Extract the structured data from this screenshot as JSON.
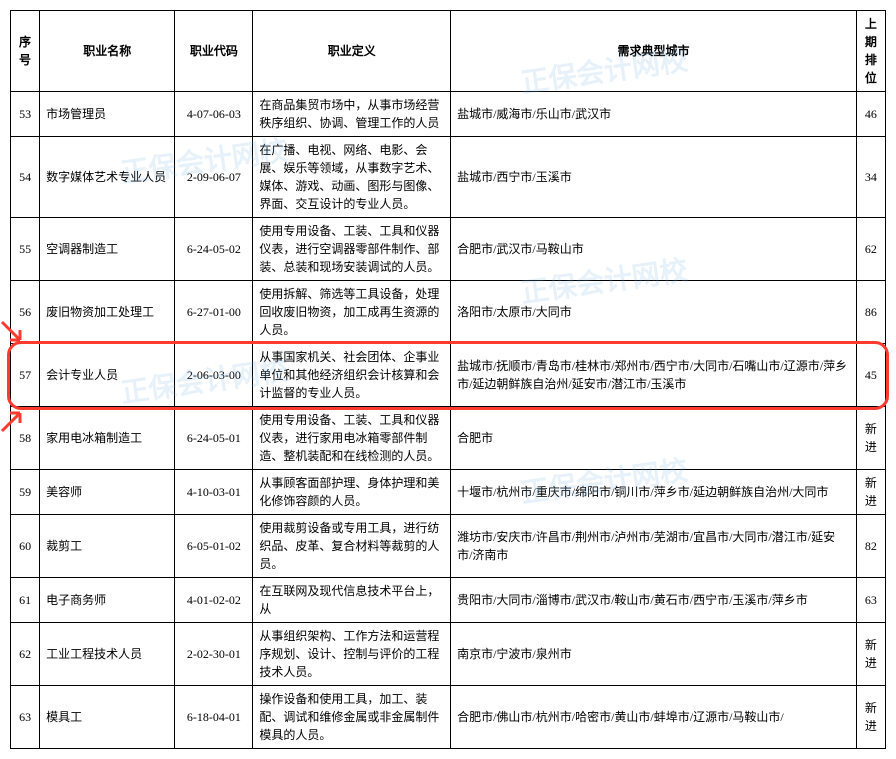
{
  "columns": {
    "num": "序号",
    "name": "职业名称",
    "code": "职业代码",
    "def": "职业定义",
    "city": "需求典型城市",
    "rank": "上期排位"
  },
  "rows": [
    {
      "num": "53",
      "name": "市场管理员",
      "code": "4-07-06-03",
      "def": "在商品集贸市场中，从事市场经营秩序组织、协调、管理工作的人员",
      "city": "盐城市/威海市/乐山市/武汉市",
      "rank": "46"
    },
    {
      "num": "54",
      "name": "数字媒体艺术专业人员",
      "code": "2-09-06-07",
      "def": "在广播、电视、网络、电影、会展、娱乐等领域，从事数字艺术、媒体、游戏、动画、图形与图像、界面、交互设计的专业人员。",
      "city": "盐城市/西宁市/玉溪市",
      "rank": "34"
    },
    {
      "num": "55",
      "name": "空调器制造工",
      "code": "6-24-05-02",
      "def": "使用专用设备、工装、工具和仪器仪表，进行空调器零部件制作、部装、总装和现场安装调试的人员。",
      "city": "合肥市/武汉市/马鞍山市",
      "rank": "62"
    },
    {
      "num": "56",
      "name": "废旧物资加工处理工",
      "code": "6-27-01-00",
      "def": "使用拆解、筛选等工具设备，处理回收废旧物资，加工成再生资源的人员。",
      "city": "洛阳市/太原市/大同市",
      "rank": "86"
    },
    {
      "num": "57",
      "name": "会计专业人员",
      "code": "2-06-03-00",
      "def": "从事国家机关、社会团体、企事业单位和其他经济组织会计核算和会计监督的专业人员。",
      "city": "盐城市/抚顺市/青岛市/桂林市/郑州市/西宁市/大同市/石嘴山市/辽源市/萍乡市/延边朝鲜族自治州/延安市/潜江市/玉溪市",
      "rank": "45"
    },
    {
      "num": "58",
      "name": "家用电冰箱制造工",
      "code": "6-24-05-01",
      "def": "使用专用设备、工装、工具和仪器仪表，进行家用电冰箱零部件制造、整机装配和在线检测的人员。",
      "city": "合肥市",
      "rank": "新进"
    },
    {
      "num": "59",
      "name": "美容师",
      "code": "4-10-03-01",
      "def": "从事顾客面部护理、身体护理和美化修饰容颜的人员。",
      "city": "十堰市/杭州市/重庆市/绵阳市/铜川市/萍乡市/延边朝鲜族自治州/大同市",
      "rank": "新进"
    },
    {
      "num": "60",
      "name": "裁剪工",
      "code": "6-05-01-02",
      "def": "使用裁剪设备或专用工具，进行纺织品、皮革、复合材料等裁剪的人员。",
      "city": "潍坊市/安庆市/许昌市/荆州市/泸州市/芜湖市/宜昌市/大同市/潜江市/延安市/济南市",
      "rank": "82"
    },
    {
      "num": "61",
      "name": "电子商务师",
      "code": "4-01-02-02",
      "def": "在互联网及现代信息技术平台上，从",
      "city": "贵阳市/大同市/淄博市/武汉市/鞍山市/黄石市/西宁市/玉溪市/萍乡市",
      "rank": "63"
    },
    {
      "num": "62",
      "name": "工业工程技术人员",
      "code": "2-02-30-01",
      "def": "从事组织架构、工作方法和运营程序规划、设计、控制与评价的工程技术人员。",
      "city": "南京市/宁波市/泉州市",
      "rank": "新进"
    },
    {
      "num": "63",
      "name": "模具工",
      "code": "6-18-04-01",
      "def": "操作设备和使用工具，加工、装配、调试和维修金属或非金属制件模具的人员。",
      "city": "合肥市/佛山市/杭州市/哈密市/黄山市/蚌埠市/辽源市/马鞍山市/",
      "rank": "新进"
    }
  ],
  "highlight": {
    "row_index": 4,
    "box_color": "#ff3b30"
  },
  "watermark_text": "正保会计网校"
}
